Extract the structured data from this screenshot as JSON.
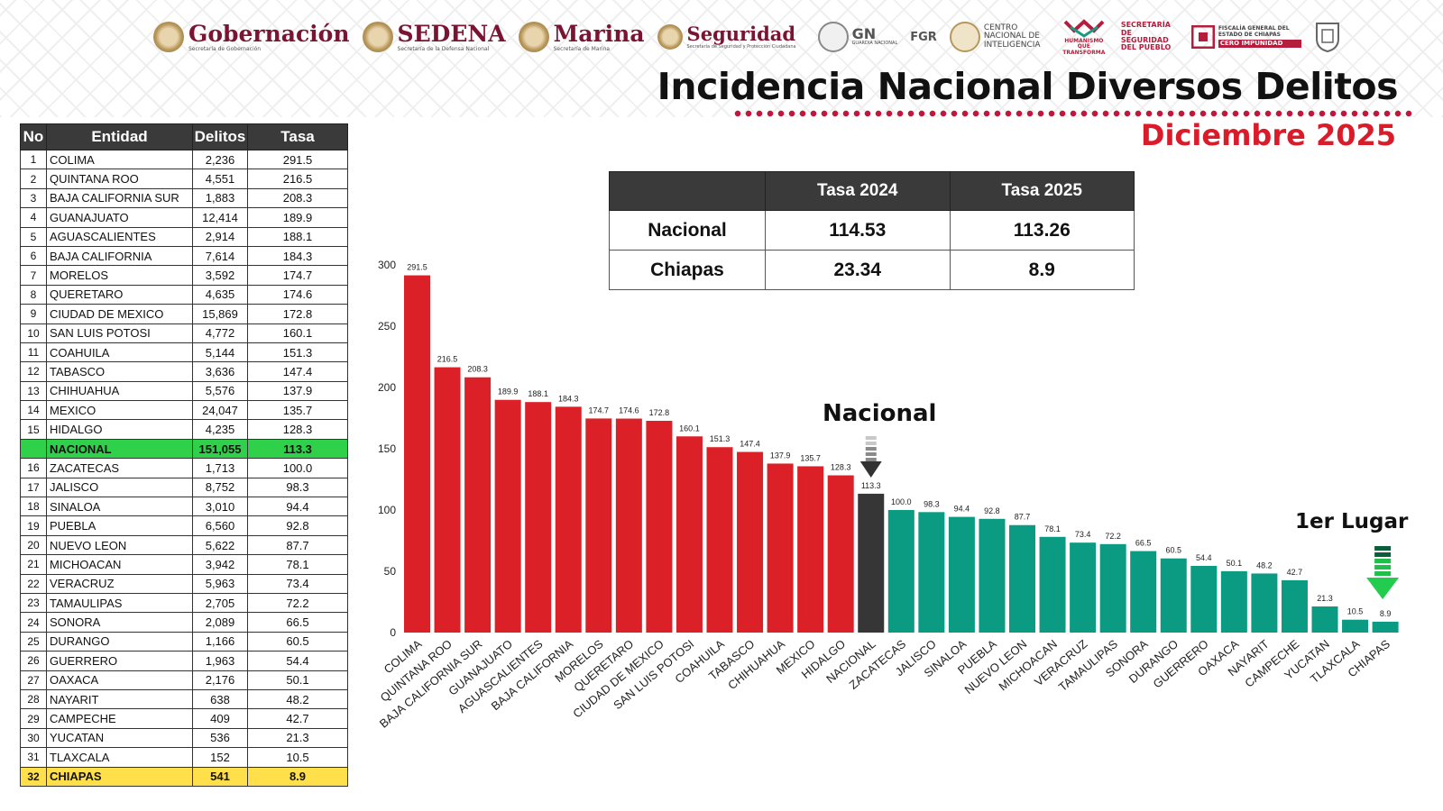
{
  "header": {
    "logos": [
      {
        "name": "Gobernación",
        "sub": "Secretaría de Gobernación"
      },
      {
        "name": "SEDENA",
        "sub": "Secretaría de la Defensa Nacional"
      },
      {
        "name": "Marina",
        "sub": "Secretaría de Marina"
      },
      {
        "name": "Seguridad",
        "sub": "Secretaría de Seguridad y Protección Ciudadana"
      }
    ],
    "gn": "GN",
    "gn_sub": "GUARDIA NACIONAL",
    "fgr": "FGR",
    "cni": "CENTRO NACIONAL DE INTELIGENCIA",
    "humanismo": "HUMANISMO QUE TRANSFORMA",
    "ssp_chiapas": "SECRETARÍA DE SEGURIDAD DEL PUEBLO",
    "fiscalia": "FISCALÍA GENERAL DEL ESTADO DE CHIAPAS",
    "cero_impunidad": "CERO IMPUNIDAD"
  },
  "title": "Incidencia Nacional Diversos Delitos",
  "subtitle": "Diciembre 2025",
  "comparison": {
    "headers": [
      "",
      "Tasa 2024",
      "Tasa 2025"
    ],
    "rows": [
      {
        "label": "Nacional",
        "v2024": "114.53",
        "v2025": "113.26"
      },
      {
        "label": "Chiapas",
        "v2024": "23.34",
        "v2025": "8.9"
      }
    ]
  },
  "ranking": {
    "headers": [
      "No",
      "Entidad",
      "Delitos",
      "Tasa"
    ],
    "rows": [
      {
        "no": "1",
        "entidad": "COLIMA",
        "delitos": "2,236",
        "tasa": "291.5"
      },
      {
        "no": "2",
        "entidad": "QUINTANA ROO",
        "delitos": "4,551",
        "tasa": "216.5"
      },
      {
        "no": "3",
        "entidad": "BAJA CALIFORNIA SUR",
        "delitos": "1,883",
        "tasa": "208.3"
      },
      {
        "no": "4",
        "entidad": "GUANAJUATO",
        "delitos": "12,414",
        "tasa": "189.9"
      },
      {
        "no": "5",
        "entidad": "AGUASCALIENTES",
        "delitos": "2,914",
        "tasa": "188.1"
      },
      {
        "no": "6",
        "entidad": "BAJA CALIFORNIA",
        "delitos": "7,614",
        "tasa": "184.3"
      },
      {
        "no": "7",
        "entidad": "MORELOS",
        "delitos": "3,592",
        "tasa": "174.7"
      },
      {
        "no": "8",
        "entidad": "QUERETARO",
        "delitos": "4,635",
        "tasa": "174.6"
      },
      {
        "no": "9",
        "entidad": "CIUDAD DE MEXICO",
        "delitos": "15,869",
        "tasa": "172.8"
      },
      {
        "no": "10",
        "entidad": "SAN LUIS POTOSI",
        "delitos": "4,772",
        "tasa": "160.1"
      },
      {
        "no": "11",
        "entidad": "COAHUILA",
        "delitos": "5,144",
        "tasa": "151.3"
      },
      {
        "no": "12",
        "entidad": "TABASCO",
        "delitos": "3,636",
        "tasa": "147.4"
      },
      {
        "no": "13",
        "entidad": "CHIHUAHUA",
        "delitos": "5,576",
        "tasa": "137.9"
      },
      {
        "no": "14",
        "entidad": "MEXICO",
        "delitos": "24,047",
        "tasa": "135.7"
      },
      {
        "no": "15",
        "entidad": "HIDALGO",
        "delitos": "4,235",
        "tasa": "128.3"
      },
      {
        "no": "",
        "entidad": "NACIONAL",
        "delitos": "151,055",
        "tasa": "113.3",
        "highlight": "nacional"
      },
      {
        "no": "16",
        "entidad": "ZACATECAS",
        "delitos": "1,713",
        "tasa": "100.0"
      },
      {
        "no": "17",
        "entidad": "JALISCO",
        "delitos": "8,752",
        "tasa": "98.3"
      },
      {
        "no": "18",
        "entidad": "SINALOA",
        "delitos": "3,010",
        "tasa": "94.4"
      },
      {
        "no": "19",
        "entidad": "PUEBLA",
        "delitos": "6,560",
        "tasa": "92.8"
      },
      {
        "no": "20",
        "entidad": "NUEVO LEON",
        "delitos": "5,622",
        "tasa": "87.7"
      },
      {
        "no": "21",
        "entidad": "MICHOACAN",
        "delitos": "3,942",
        "tasa": "78.1"
      },
      {
        "no": "22",
        "entidad": "VERACRUZ",
        "delitos": "5,963",
        "tasa": "73.4"
      },
      {
        "no": "23",
        "entidad": "TAMAULIPAS",
        "delitos": "2,705",
        "tasa": "72.2"
      },
      {
        "no": "24",
        "entidad": "SONORA",
        "delitos": "2,089",
        "tasa": "66.5"
      },
      {
        "no": "25",
        "entidad": "DURANGO",
        "delitos": "1,166",
        "tasa": "60.5"
      },
      {
        "no": "26",
        "entidad": "GUERRERO",
        "delitos": "1,963",
        "tasa": "54.4"
      },
      {
        "no": "27",
        "entidad": "OAXACA",
        "delitos": "2,176",
        "tasa": "50.1"
      },
      {
        "no": "28",
        "entidad": "NAYARIT",
        "delitos": "638",
        "tasa": "48.2"
      },
      {
        "no": "29",
        "entidad": "CAMPECHE",
        "delitos": "409",
        "tasa": "42.7"
      },
      {
        "no": "30",
        "entidad": "YUCATAN",
        "delitos": "536",
        "tasa": "21.3"
      },
      {
        "no": "31",
        "entidad": "TLAXCALA",
        "delitos": "152",
        "tasa": "10.5"
      },
      {
        "no": "32",
        "entidad": "CHIAPAS",
        "delitos": "541",
        "tasa": "8.9",
        "highlight": "chiapas"
      }
    ]
  },
  "annotations": {
    "nacional": "Nacional",
    "primer_lugar": "1er Lugar"
  },
  "colors": {
    "above": "#dc2027",
    "national": "#363636",
    "below": "#0b9a82",
    "nacional_row": "#2fd04a",
    "chiapas_row": "#ffe04a",
    "title_red": "#d91b2a"
  },
  "chart_data": {
    "type": "bar",
    "categories": [
      "COLIMA",
      "QUINTANA ROO",
      "BAJA CALIFORNIA SUR",
      "GUANAJUATO",
      "AGUASCALIENTES",
      "BAJA CALIFORNIA",
      "MORELOS",
      "QUERETARO",
      "CIUDAD DE MEXICO",
      "SAN LUIS POTOSI",
      "COAHUILA",
      "TABASCO",
      "CHIHUAHUA",
      "MEXICO",
      "HIDALGO",
      "NACIONAL",
      "ZACATECAS",
      "JALISCO",
      "SINALOA",
      "PUEBLA",
      "NUEVO LEON",
      "MICHOACAN",
      "VERACRUZ",
      "TAMAULIPAS",
      "SONORA",
      "DURANGO",
      "GUERRERO",
      "OAXACA",
      "NAYARIT",
      "CAMPECHE",
      "YUCATAN",
      "TLAXCALA",
      "CHIAPAS"
    ],
    "values": [
      291.5,
      216.5,
      208.3,
      189.9,
      188.1,
      184.3,
      174.7,
      174.6,
      172.8,
      160.1,
      151.3,
      147.4,
      137.9,
      135.7,
      128.3,
      113.3,
      100.0,
      98.3,
      94.4,
      92.8,
      87.7,
      78.1,
      73.4,
      72.2,
      66.5,
      60.5,
      54.4,
      50.1,
      48.2,
      42.7,
      21.3,
      10.5,
      8.9
    ],
    "ylim": [
      0,
      300
    ],
    "yticks": [
      0,
      50,
      100,
      150,
      200,
      250,
      300
    ],
    "grid": false,
    "title": "",
    "xlabel": "",
    "ylabel": ""
  }
}
